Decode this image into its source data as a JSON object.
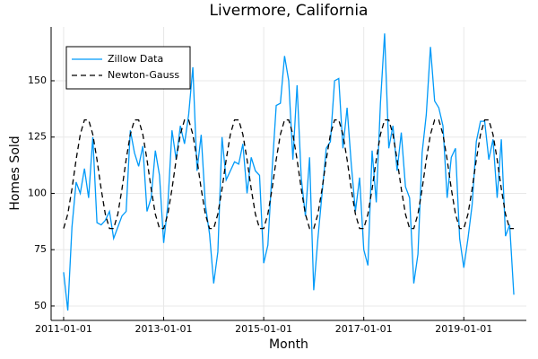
{
  "chart_data": {
    "type": "line",
    "title": "Livermore, California",
    "xlabel": "Month",
    "ylabel": "Homes Sold",
    "x": [
      "2011-01-01",
      "2011-02-01",
      "2011-03-01",
      "2011-04-01",
      "2011-05-01",
      "2011-06-01",
      "2011-07-01",
      "2011-08-01",
      "2011-09-01",
      "2011-10-01",
      "2011-11-01",
      "2011-12-01",
      "2012-01-01",
      "2012-02-01",
      "2012-03-01",
      "2012-04-01",
      "2012-05-01",
      "2012-06-01",
      "2012-07-01",
      "2012-08-01",
      "2012-09-01",
      "2012-10-01",
      "2012-11-01",
      "2012-12-01",
      "2013-01-01",
      "2013-02-01",
      "2013-03-01",
      "2013-04-01",
      "2013-05-01",
      "2013-06-01",
      "2013-07-01",
      "2013-08-01",
      "2013-09-01",
      "2013-10-01",
      "2013-11-01",
      "2013-12-01",
      "2014-01-01",
      "2014-02-01",
      "2014-03-01",
      "2014-04-01",
      "2014-05-01",
      "2014-06-01",
      "2014-07-01",
      "2014-08-01",
      "2014-09-01",
      "2014-10-01",
      "2014-11-01",
      "2014-12-01",
      "2015-01-01",
      "2015-02-01",
      "2015-03-01",
      "2015-04-01",
      "2015-05-01",
      "2015-06-01",
      "2015-07-01",
      "2015-08-01",
      "2015-09-01",
      "2015-10-01",
      "2015-11-01",
      "2015-12-01",
      "2016-01-01",
      "2016-02-01",
      "2016-03-01",
      "2016-04-01",
      "2016-05-01",
      "2016-06-01",
      "2016-07-01",
      "2016-08-01",
      "2016-09-01",
      "2016-10-01",
      "2016-11-01",
      "2016-12-01",
      "2017-01-01",
      "2017-02-01",
      "2017-03-01",
      "2017-04-01",
      "2017-05-01",
      "2017-06-01",
      "2017-07-01",
      "2017-08-01",
      "2017-09-01",
      "2017-10-01",
      "2017-11-01",
      "2017-12-01",
      "2018-01-01",
      "2018-02-01",
      "2018-03-01",
      "2018-04-01",
      "2018-05-01",
      "2018-06-01",
      "2018-07-01",
      "2018-08-01",
      "2018-09-01",
      "2018-10-01",
      "2018-11-01",
      "2018-12-01",
      "2019-01-01",
      "2019-02-01",
      "2019-03-01",
      "2019-04-01",
      "2019-05-01",
      "2019-06-01",
      "2019-07-01",
      "2019-08-01",
      "2019-09-01",
      "2019-10-01",
      "2019-11-01",
      "2019-12-01",
      "2020-01-01"
    ],
    "series": [
      {
        "name": "Zillow Data",
        "color": "#009af9",
        "dash": "none",
        "values": [
          65,
          48,
          85,
          105,
          100,
          111,
          98,
          125,
          87,
          86,
          88,
          92,
          80,
          85,
          90,
          92,
          128,
          118,
          112,
          121,
          92,
          98,
          119,
          108,
          78,
          95,
          128,
          115,
          130,
          122,
          135,
          156,
          110,
          126,
          95,
          82,
          60,
          74,
          125,
          106,
          110,
          114,
          113,
          122,
          100,
          116,
          110,
          108,
          69,
          77,
          110,
          139,
          140,
          161,
          150,
          115,
          148,
          107,
          90,
          116,
          57,
          80,
          100,
          120,
          123,
          150,
          151,
          120,
          138,
          113,
          92,
          107,
          75,
          68,
          119,
          96,
          140,
          171,
          120,
          130,
          110,
          127,
          103,
          98,
          60,
          73,
          118,
          135,
          165,
          141,
          138,
          130,
          98,
          116,
          120,
          80,
          67,
          80,
          95,
          123,
          132,
          132,
          115,
          124,
          98,
          124,
          81,
          86,
          55
        ]
      },
      {
        "name": "Newton-Gauss",
        "color": "#000000",
        "dash": "6,4",
        "values": [
          84.4,
          90.8,
          102.0,
          115.0,
          126.2,
          132.6,
          132.6,
          126.2,
          115.0,
          102.0,
          90.8,
          84.4,
          84.4,
          90.8,
          102.0,
          115.0,
          126.2,
          132.6,
          132.6,
          126.2,
          115.0,
          102.0,
          90.8,
          84.4,
          84.4,
          90.8,
          102.0,
          115.0,
          126.2,
          132.6,
          132.6,
          126.2,
          115.0,
          102.0,
          90.8,
          84.4,
          84.4,
          90.8,
          102.0,
          115.0,
          126.2,
          132.6,
          132.6,
          126.2,
          115.0,
          102.0,
          90.8,
          84.4,
          84.4,
          90.8,
          102.0,
          115.0,
          126.2,
          132.6,
          132.6,
          126.2,
          115.0,
          102.0,
          90.8,
          84.4,
          84.4,
          90.8,
          102.0,
          115.0,
          126.2,
          132.6,
          132.6,
          126.2,
          115.0,
          102.0,
          90.8,
          84.4,
          84.4,
          90.8,
          102.0,
          115.0,
          126.2,
          132.6,
          132.6,
          126.2,
          115.0,
          102.0,
          90.8,
          84.4,
          84.4,
          90.8,
          102.0,
          115.0,
          126.2,
          132.6,
          132.6,
          126.2,
          115.0,
          102.0,
          90.8,
          84.4,
          84.4,
          90.8,
          102.0,
          115.0,
          126.2,
          132.6,
          132.6,
          126.2,
          115.0,
          102.0,
          90.8,
          84.4,
          84.4
        ]
      }
    ],
    "xlim": [
      "2010-10-01",
      "2020-04-01"
    ],
    "xticks": [
      "2011-01-01",
      "2013-01-01",
      "2015-01-01",
      "2017-01-01",
      "2019-01-01"
    ],
    "ylim": [
      43.6,
      173.9
    ],
    "yticks": [
      50,
      75,
      100,
      125,
      150
    ],
    "grid": true,
    "legend": "top-left"
  }
}
